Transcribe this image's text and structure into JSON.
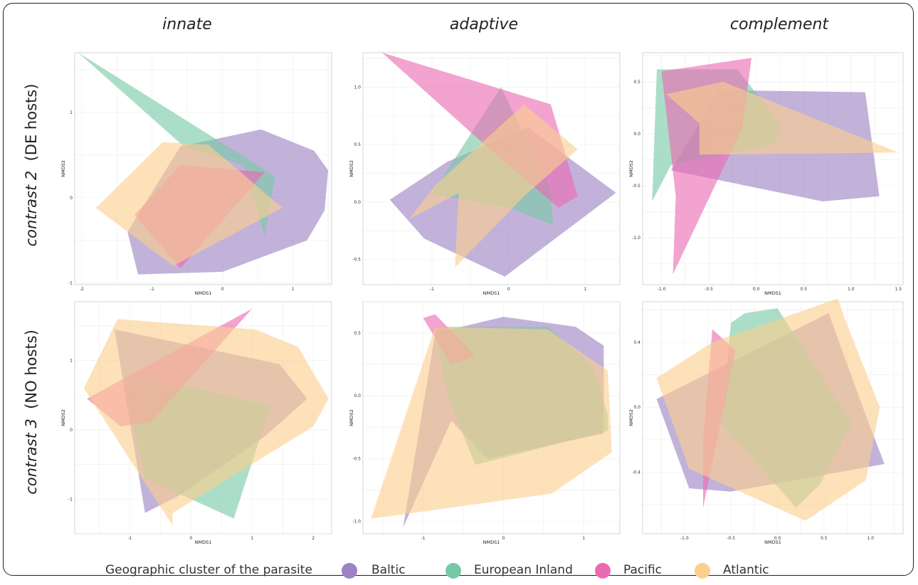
{
  "column_titles": [
    "innate",
    "adaptive",
    "complement"
  ],
  "row_labels": [
    {
      "italic": "contrast 2",
      "normal": "(DE hosts)"
    },
    {
      "italic": "contrast 3",
      "normal": "(NO hosts)"
    }
  ],
  "legend": {
    "title": "Geographic cluster of the parasite",
    "items": [
      {
        "name": "Baltic",
        "color": "#9d82c4"
      },
      {
        "name": "European Inland",
        "color": "#77c9a6"
      },
      {
        "name": "Pacific",
        "color": "#ea6bb2"
      },
      {
        "name": "Atlantic",
        "color": "#fbcf8e"
      }
    ]
  },
  "chart_data": [
    {
      "type": "area",
      "panel": "contrast 2 / innate",
      "xlabel": "NMDS1",
      "ylabel": "NMDS2",
      "xlim": [
        -2.1,
        1.55
      ],
      "ylim": [
        -1.02,
        1.7
      ],
      "xticks": [
        -2,
        -1,
        0,
        1
      ],
      "yticks": [
        -1,
        0,
        1
      ],
      "series": [
        {
          "name": "Baltic",
          "points": [
            [
              -1.2,
              -0.9
            ],
            [
              0,
              -0.87
            ],
            [
              1.2,
              -0.5
            ],
            [
              1.45,
              -0.15
            ],
            [
              1.5,
              0.32
            ],
            [
              1.3,
              0.55
            ],
            [
              0.55,
              0.8
            ],
            [
              -0.6,
              0.6
            ],
            [
              -1.35,
              -0.4
            ]
          ]
        },
        {
          "name": "European Inland",
          "points": [
            [
              -2.05,
              1.7
            ],
            [
              0.75,
              0.25
            ],
            [
              0.6,
              -0.45
            ],
            [
              0.3,
              0.38
            ],
            [
              -0.55,
              0.6
            ]
          ]
        },
        {
          "name": "Pacific",
          "points": [
            [
              -1.25,
              -0.2
            ],
            [
              -0.6,
              -0.83
            ],
            [
              0.6,
              0.3
            ],
            [
              -0.6,
              0.38
            ]
          ]
        },
        {
          "name": "Atlantic",
          "points": [
            [
              -1.8,
              -0.12
            ],
            [
              -0.85,
              0.65
            ],
            [
              -0.2,
              0.62
            ],
            [
              0.85,
              -0.12
            ],
            [
              -0.7,
              -0.8
            ]
          ]
        }
      ]
    },
    {
      "type": "area",
      "panel": "contrast 2 / adaptive",
      "xlabel": "NMDS1",
      "ylabel": "NMDS2",
      "xlim": [
        -1.9,
        1.45
      ],
      "ylim": [
        -0.72,
        1.3
      ],
      "xticks": [
        -1,
        0,
        1
      ],
      "yticks": [
        -0.5,
        0.0,
        0.5,
        1.0
      ],
      "series": [
        {
          "name": "Baltic",
          "points": [
            [
              -1.55,
              0.02
            ],
            [
              -1.1,
              -0.32
            ],
            [
              -0.05,
              -0.65
            ],
            [
              1.4,
              0.08
            ],
            [
              0.25,
              0.65
            ],
            [
              -0.8,
              0.35
            ]
          ]
        },
        {
          "name": "European Inland",
          "points": [
            [
              -0.1,
              1.0
            ],
            [
              0.55,
              0.1
            ],
            [
              0.58,
              -0.2
            ],
            [
              0.0,
              -0.05
            ],
            [
              -1.0,
              0.07
            ]
          ]
        },
        {
          "name": "Pacific",
          "points": [
            [
              -1.65,
              1.3
            ],
            [
              0.55,
              0.85
            ],
            [
              0.9,
              0.05
            ],
            [
              0.65,
              -0.05
            ],
            [
              -0.4,
              0.55
            ]
          ]
        },
        {
          "name": "Atlantic",
          "points": [
            [
              -1.3,
              -0.15
            ],
            [
              -0.65,
              0.08
            ],
            [
              -0.7,
              -0.57
            ],
            [
              0.2,
              0.05
            ],
            [
              0.9,
              0.46
            ],
            [
              0.2,
              0.85
            ],
            [
              -0.95,
              0.15
            ]
          ]
        }
      ]
    },
    {
      "type": "area",
      "panel": "contrast 2 / complement",
      "xlabel": "NMDS1",
      "ylabel": "NMDS2",
      "xlim": [
        -1.2,
        1.55
      ],
      "ylim": [
        -1.45,
        0.78
      ],
      "xticks": [
        -1.0,
        -0.5,
        0.0,
        0.5,
        1.0,
        1.5
      ],
      "yticks": [
        -1.0,
        -0.5,
        0.0,
        0.5
      ],
      "series": [
        {
          "name": "Baltic",
          "points": [
            [
              -0.9,
              -0.35
            ],
            [
              0.7,
              -0.65
            ],
            [
              1.3,
              -0.6
            ],
            [
              1.15,
              0.4
            ],
            [
              -0.4,
              0.42
            ],
            [
              -0.6,
              0.1
            ]
          ]
        },
        {
          "name": "European Inland",
          "points": [
            [
              -1.1,
              -0.65
            ],
            [
              -1.05,
              0.62
            ],
            [
              -0.2,
              0.62
            ],
            [
              0.25,
              0.1
            ],
            [
              0.2,
              -0.1
            ],
            [
              -0.9,
              -0.3
            ]
          ]
        },
        {
          "name": "Pacific",
          "points": [
            [
              -1.0,
              0.6
            ],
            [
              -0.05,
              0.73
            ],
            [
              -0.15,
              0.05
            ],
            [
              -0.88,
              -1.35
            ],
            [
              -0.85,
              -0.6
            ]
          ]
        },
        {
          "name": "Atlantic",
          "points": [
            [
              -0.95,
              0.38
            ],
            [
              -0.35,
              0.5
            ],
            [
              1.5,
              -0.18
            ],
            [
              -0.6,
              -0.2
            ],
            [
              -0.6,
              0.1
            ]
          ]
        }
      ]
    },
    {
      "type": "area",
      "panel": "contrast 3 / innate",
      "xlabel": "NMDS1",
      "ylabel": "NMDS2",
      "xlim": [
        -1.9,
        2.3
      ],
      "ylim": [
        -1.5,
        1.85
      ],
      "xticks": [
        -1,
        0,
        1,
        2
      ],
      "yticks": [
        -1,
        0,
        1
      ],
      "series": [
        {
          "name": "Baltic",
          "points": [
            [
              -1.25,
              1.45
            ],
            [
              1.45,
              0.95
            ],
            [
              1.9,
              0.45
            ],
            [
              1.2,
              -0.1
            ],
            [
              -0.2,
              -0.95
            ],
            [
              -0.75,
              -1.2
            ]
          ]
        },
        {
          "name": "European Inland",
          "points": [
            [
              -1.05,
              0.45
            ],
            [
              -0.9,
              0.8
            ],
            [
              1.3,
              0.35
            ],
            [
              0.7,
              -1.28
            ],
            [
              -0.75,
              -0.7
            ]
          ]
        },
        {
          "name": "Pacific",
          "points": [
            [
              -1.7,
              0.45
            ],
            [
              1.0,
              1.75
            ],
            [
              -0.65,
              0.12
            ],
            [
              -1.15,
              0.05
            ]
          ]
        },
        {
          "name": "Atlantic",
          "points": [
            [
              -1.75,
              0.6
            ],
            [
              -1.2,
              1.6
            ],
            [
              1.05,
              1.45
            ],
            [
              1.75,
              1.2
            ],
            [
              2.25,
              0.45
            ],
            [
              2.0,
              0.05
            ],
            [
              -0.3,
              -1.2
            ],
            [
              -0.3,
              -1.38
            ]
          ]
        }
      ]
    },
    {
      "type": "area",
      "panel": "contrast 3 / adaptive",
      "xlabel": "NMDS1",
      "ylabel": "NMDS2",
      "xlim": [
        -1.75,
        1.45
      ],
      "ylim": [
        -1.1,
        0.75
      ],
      "xticks": [
        -1,
        0,
        1
      ],
      "yticks": [
        -1.0,
        -0.5,
        0.0,
        0.5
      ],
      "series": [
        {
          "name": "Baltic",
          "points": [
            [
              -1.25,
              -1.05
            ],
            [
              -0.85,
              0.5
            ],
            [
              0.0,
              0.63
            ],
            [
              0.9,
              0.55
            ],
            [
              1.25,
              0.4
            ],
            [
              1.25,
              -0.3
            ],
            [
              -0.2,
              -0.5
            ],
            [
              -0.65,
              -0.2
            ]
          ]
        },
        {
          "name": "European Inland",
          "points": [
            [
              -0.85,
              0.55
            ],
            [
              0.55,
              0.55
            ],
            [
              1.1,
              0.25
            ],
            [
              1.3,
              -0.15
            ],
            [
              1.3,
              -0.28
            ],
            [
              -0.35,
              -0.55
            ],
            [
              -0.7,
              0.0
            ]
          ]
        },
        {
          "name": "Pacific",
          "points": [
            [
              -1.0,
              0.62
            ],
            [
              -0.85,
              0.65
            ],
            [
              -0.35,
              0.32
            ],
            [
              -0.65,
              0.25
            ]
          ]
        },
        {
          "name": "Atlantic",
          "points": [
            [
              -1.65,
              -0.98
            ],
            [
              -0.85,
              0.55
            ],
            [
              0.55,
              0.53
            ],
            [
              1.3,
              0.2
            ],
            [
              1.35,
              -0.45
            ],
            [
              0.6,
              -0.78
            ]
          ]
        }
      ]
    },
    {
      "type": "area",
      "panel": "contrast 3 / complement",
      "xlabel": "NMDS1",
      "ylabel": "NMDS2",
      "xlim": [
        -1.45,
        1.35
      ],
      "ylim": [
        -0.78,
        0.65
      ],
      "xticks": [
        -1.0,
        -0.5,
        0.0,
        0.5,
        1.0
      ],
      "yticks": [
        -0.4,
        0.0,
        0.4
      ],
      "series": [
        {
          "name": "Baltic",
          "points": [
            [
              -1.3,
              0.05
            ],
            [
              0.55,
              0.58
            ],
            [
              0.95,
              -0.05
            ],
            [
              1.15,
              -0.35
            ],
            [
              -0.5,
              -0.52
            ],
            [
              -0.95,
              -0.5
            ]
          ]
        },
        {
          "name": "European Inland",
          "points": [
            [
              -0.5,
              0.52
            ],
            [
              -0.35,
              0.58
            ],
            [
              0.0,
              0.61
            ],
            [
              0.8,
              -0.1
            ],
            [
              0.45,
              -0.48
            ],
            [
              0.2,
              -0.62
            ],
            [
              -0.6,
              -0.1
            ]
          ]
        },
        {
          "name": "Pacific",
          "points": [
            [
              -0.7,
              0.48
            ],
            [
              -0.45,
              0.35
            ],
            [
              -0.8,
              -0.62
            ],
            [
              -0.8,
              -0.2
            ]
          ]
        },
        {
          "name": "Atlantic",
          "points": [
            [
              -1.3,
              0.18
            ],
            [
              -0.7,
              0.4
            ],
            [
              0.65,
              0.67
            ],
            [
              0.72,
              0.55
            ],
            [
              1.1,
              0.0
            ],
            [
              0.95,
              -0.45
            ],
            [
              0.3,
              -0.7
            ],
            [
              -0.95,
              -0.38
            ]
          ]
        }
      ]
    }
  ]
}
